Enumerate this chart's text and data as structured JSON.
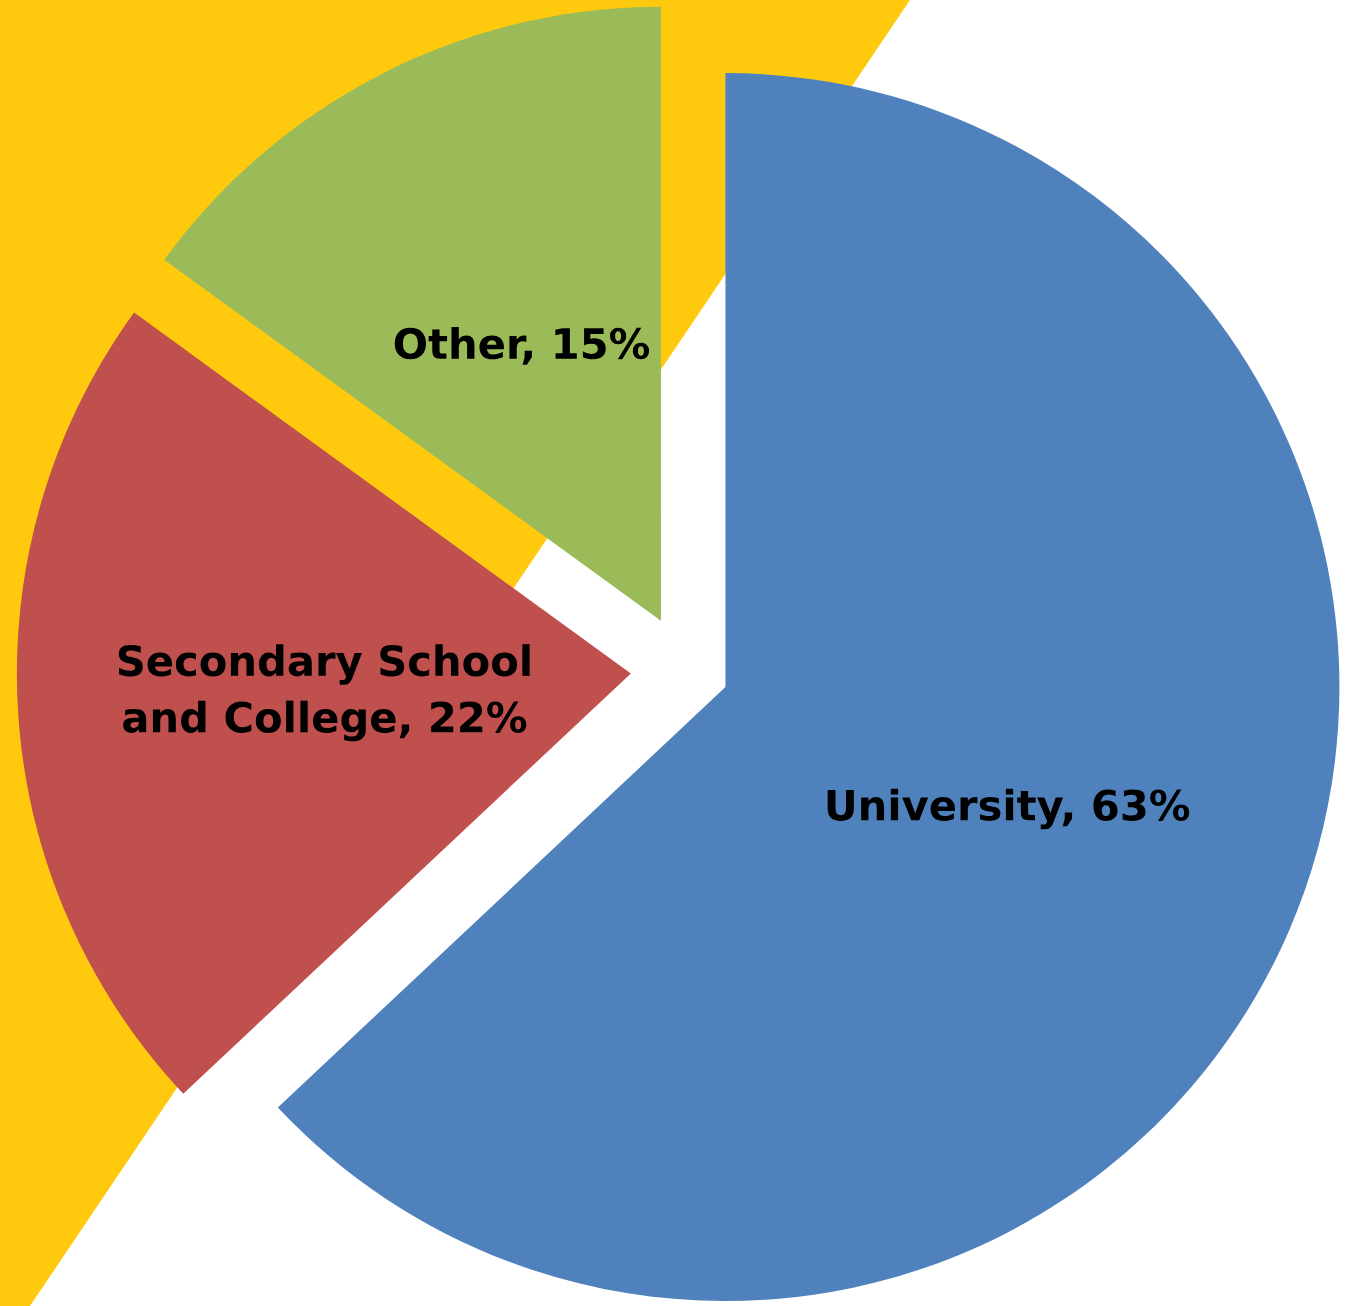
{
  "chart_data": {
    "type": "pie",
    "categories": [
      "University",
      "Secondary School and College",
      "Other"
    ],
    "values": [
      63,
      22,
      15
    ],
    "colors": [
      "#4f81bd",
      "#c0504d",
      "#9bbb59"
    ],
    "value_labels": [
      "63%",
      "22%",
      "15%"
    ],
    "legend": false
  }
}
